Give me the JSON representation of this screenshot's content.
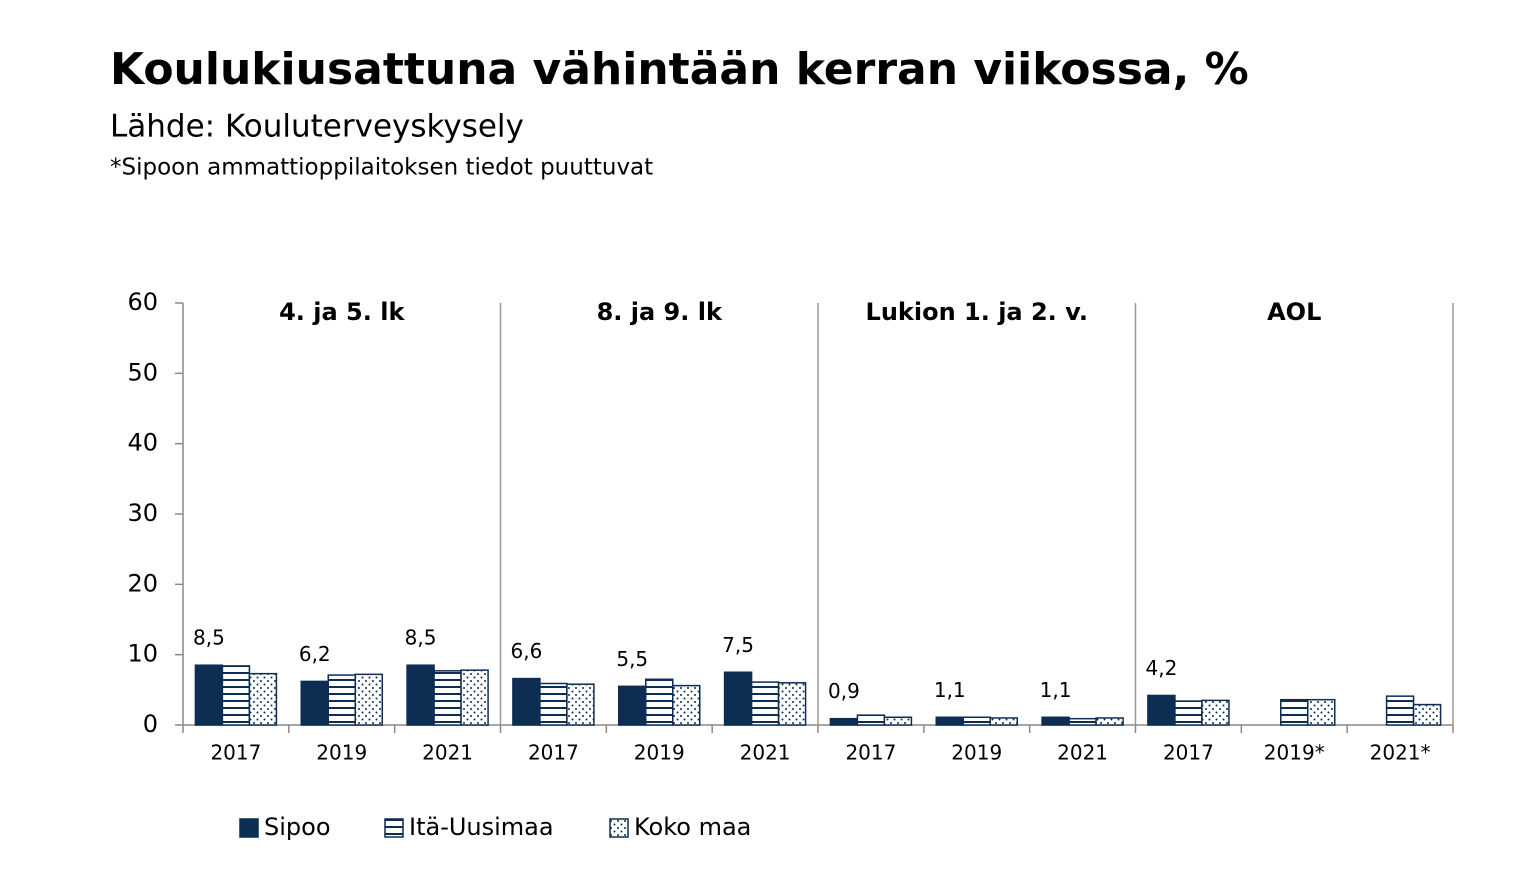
{
  "title": "Koulukiusattuna vähintään kerran viikossa, %",
  "subtitle": "Lähde: Kouluterveyskysely",
  "note": "*Sipoon ammattioppilaitoksen tiedot puuttuvat",
  "chart_data": {
    "type": "bar",
    "groups": [
      "4. ja 5. lk",
      "8. ja 9. lk",
      "Lukion 1. ja 2. v.",
      "AOL"
    ],
    "categories": [
      "2017",
      "2019",
      "2021",
      "2017",
      "2019",
      "2021",
      "2017",
      "2019",
      "2021",
      "2017",
      "2019*",
      "2021*"
    ],
    "series": [
      {
        "name": "Sipoo",
        "color": "#0d2d52",
        "pattern": "solid",
        "values": [
          8.5,
          6.2,
          8.5,
          6.6,
          5.5,
          7.5,
          0.9,
          1.1,
          1.1,
          4.2,
          null,
          null
        ],
        "value_labels": [
          "8,5",
          "6,2",
          "8,5",
          "6,6",
          "5,5",
          "7,5",
          "0,9",
          "1,1",
          "1,1",
          "4,2",
          null,
          null
        ]
      },
      {
        "name": "Itä-Uusimaa",
        "color": "#0d2d52",
        "pattern": "stripes",
        "values": [
          8.4,
          7.1,
          7.7,
          5.9,
          6.5,
          6.1,
          1.4,
          1.1,
          0.9,
          3.4,
          3.6,
          4.1
        ]
      },
      {
        "name": "Koko maa",
        "color": "#0d2d52",
        "pattern": "dots",
        "values": [
          7.3,
          7.2,
          7.8,
          5.8,
          5.6,
          6.0,
          1.1,
          1.0,
          1.0,
          3.5,
          3.6,
          2.9
        ]
      }
    ],
    "ylim": [
      0,
      60
    ],
    "yticks": [
      0,
      10,
      20,
      30,
      40,
      50,
      60
    ],
    "legend": "bottom"
  }
}
